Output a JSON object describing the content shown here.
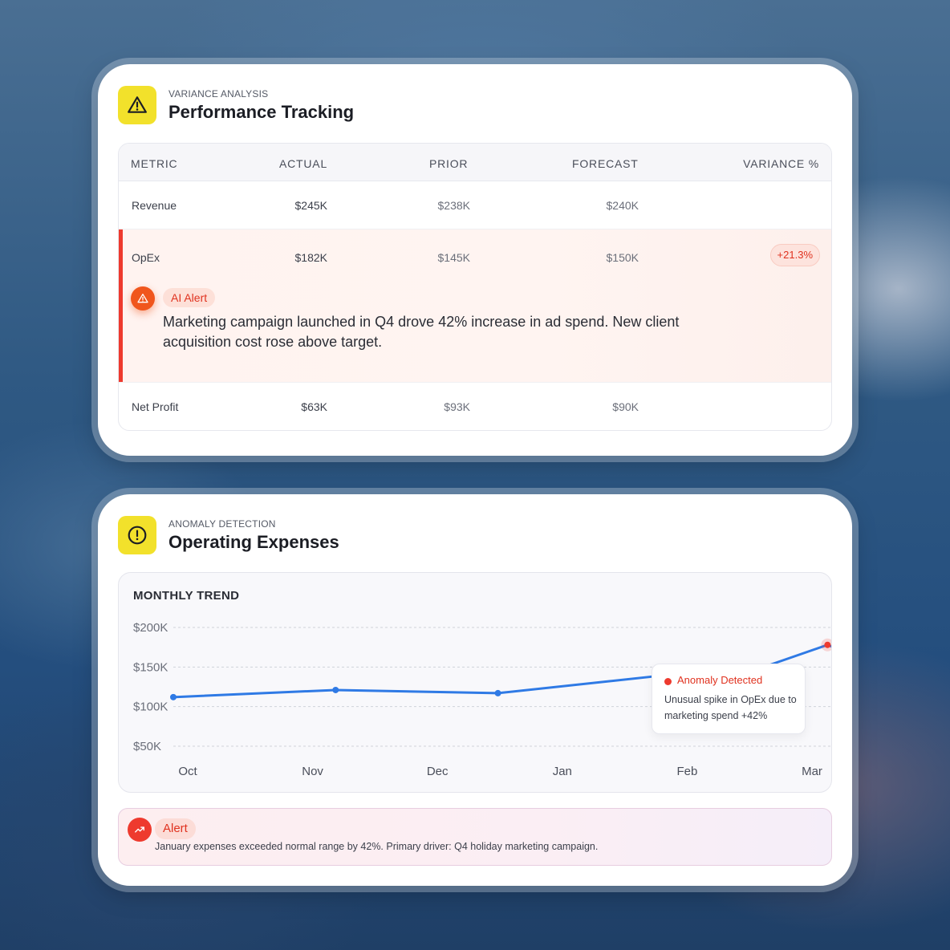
{
  "variance_card": {
    "kicker": "VARIANCE ANALYSIS",
    "title": "Performance Tracking",
    "icon": "warning-triangle-icon",
    "columns": [
      "METRIC",
      "ACTUAL",
      "PRIOR",
      "FORECAST",
      "VARIANCE %"
    ],
    "rows": [
      {
        "metric": "Revenue",
        "actual": "$245K",
        "prior": "$238K",
        "forecast": "$240K",
        "variance": ""
      },
      {
        "metric": "OpEx",
        "actual": "$182K",
        "prior": "$145K",
        "forecast": "$150K",
        "variance": "+21.3%"
      },
      {
        "metric": "Net Profit",
        "actual": "$63K",
        "prior": "$93K",
        "forecast": "$90K",
        "variance": ""
      }
    ],
    "ai_alert": {
      "label": "AI Alert",
      "message": "Marketing campaign launched in Q4 drove 42% increase in ad spend. New client acquisition cost rose above target."
    }
  },
  "anomaly_card": {
    "kicker": "ANOMALY DETECTION",
    "title": "Operating Expenses",
    "icon": "exclamation-circle-icon",
    "chart_title": "MONTHLY TREND",
    "tooltip": {
      "title": "Anomaly Detected",
      "body": "Unusual spike in OpEx due to marketing spend +42%"
    },
    "alert": {
      "label": "Alert",
      "message": "January expenses exceeded normal range by 42%. Primary driver: Q4 holiday marketing campaign."
    }
  },
  "colors": {
    "accent_yellow": "#f2e12b",
    "line_blue": "#2f7ae5",
    "alert_red": "#ee3a2e"
  },
  "chart_data": {
    "type": "line",
    "title": "MONTHLY TREND",
    "categories": [
      "Oct",
      "Nov",
      "Dec",
      "Jan",
      "Feb",
      "Mar"
    ],
    "y_ticks": [
      "$200K",
      "$150K",
      "$100K",
      "$50K"
    ],
    "y_tick_values": [
      200,
      150,
      100,
      50
    ],
    "ylim": [
      45,
      205
    ],
    "grid": true,
    "series": [
      {
        "points": [
          {
            "x": 0.0,
            "y": 112
          },
          {
            "x": 1.3,
            "y": 121
          },
          {
            "x": 2.6,
            "y": 117
          },
          {
            "x": 3.9,
            "y": 139
          },
          {
            "x": 4.6,
            "y": 143
          },
          {
            "x": 5.24,
            "y": 178
          },
          {
            "x": 5.95,
            "y": 134
          }
        ],
        "anomaly_x": 5.24,
        "anomaly_y": 178
      }
    ]
  }
}
